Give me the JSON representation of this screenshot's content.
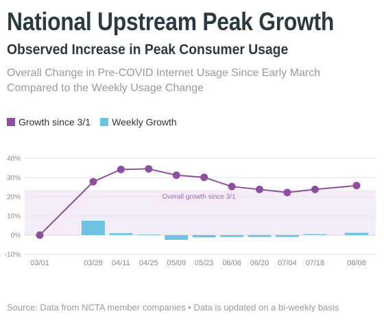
{
  "header": {
    "title": "National Upstream Peak Growth",
    "subtitle": "Observed Increase in Peak Consumer Usage",
    "description": "Overall Change in Pre-COVID Internet Usage Since Early March Compared to the Weekly Usage Change"
  },
  "footer": {
    "source": "Source: Data from NCTA member companies • Data is updated on a bi-weekly basis"
  },
  "colors": {
    "line": "#8e4f9e",
    "bar": "#6ec3e3",
    "band": "#f4ecf6",
    "band_label": "#a76bb5",
    "grid": "#e6e6e6",
    "tick_label": "#888888"
  },
  "chart_data": {
    "type": "bar",
    "x": [
      "03/01",
      "03/28",
      "04/11",
      "04/25",
      "05/09",
      "05/23",
      "06/06",
      "06/20",
      "07/04",
      "07/18",
      "08/08"
    ],
    "x_dates": [
      "03/01",
      "03/28",
      "04/11",
      "04/25",
      "05/09",
      "05/23",
      "06/06",
      "06/20",
      "07/04",
      "07/18",
      "08/08"
    ],
    "series": [
      {
        "name": "Growth since 3/1",
        "type": "line",
        "values": [
          0,
          27.8,
          34.2,
          34.5,
          31.2,
          30.1,
          25.3,
          23.8,
          22.2,
          23.8,
          25.8
        ]
      },
      {
        "name": "Weekly Growth",
        "type": "bar",
        "values": [
          null,
          7.5,
          1.0,
          0.3,
          -2.5,
          -1.2,
          -1.0,
          -1.0,
          -1.0,
          0.5,
          1.2
        ]
      }
    ],
    "annotation": {
      "label": "Overall growth since 3/1",
      "band": [
        0,
        23.5
      ]
    },
    "yticks": [
      -10,
      0,
      10,
      20,
      30,
      40
    ],
    "ytick_labels": [
      "-10%",
      "0%",
      "10%",
      "20%",
      "30%",
      "40%"
    ],
    "ylim": [
      -10,
      40
    ],
    "xlim": [
      "03/01",
      "08/08"
    ],
    "grid": true,
    "legend": "top-left",
    "title": "",
    "xlabel": "",
    "ylabel": ""
  }
}
